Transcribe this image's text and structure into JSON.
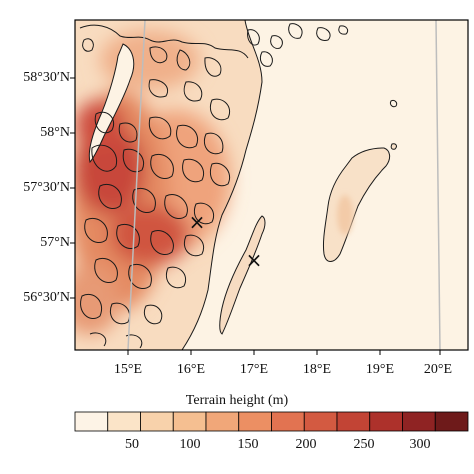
{
  "map": {
    "lat_labels": [
      "58°30′N",
      "58°N",
      "57°30′N",
      "57°N",
      "56°30′N"
    ],
    "lon_labels": [
      "15°E",
      "16°E",
      "17°E",
      "18°E",
      "19°E",
      "20°E"
    ],
    "markers": [
      {
        "symbol": "×",
        "lon": 16.1,
        "lat": 57.22
      },
      {
        "symbol": "×",
        "lon": 17.0,
        "lat": 56.93
      }
    ],
    "colors": {
      "ocean": "#fdf3e4",
      "terrain_low": "#f8dcc0",
      "terrain_mid": "#ec9a72",
      "terrain_high": "#b8302a",
      "contour": "#1a1a1a",
      "meridian": "#bdbdbd"
    }
  },
  "colorbar": {
    "title": "Terrain height (m)",
    "tick_labels": [
      "50",
      "100",
      "150",
      "200",
      "250",
      "300"
    ],
    "colors": [
      "#fdf3e6",
      "#fbe4c8",
      "#f8d2ab",
      "#f5bf91",
      "#f1a779",
      "#ec8f63",
      "#e27351",
      "#d35a41",
      "#c24435",
      "#ad312b",
      "#8f2323",
      "#6e1a1a"
    ]
  }
}
